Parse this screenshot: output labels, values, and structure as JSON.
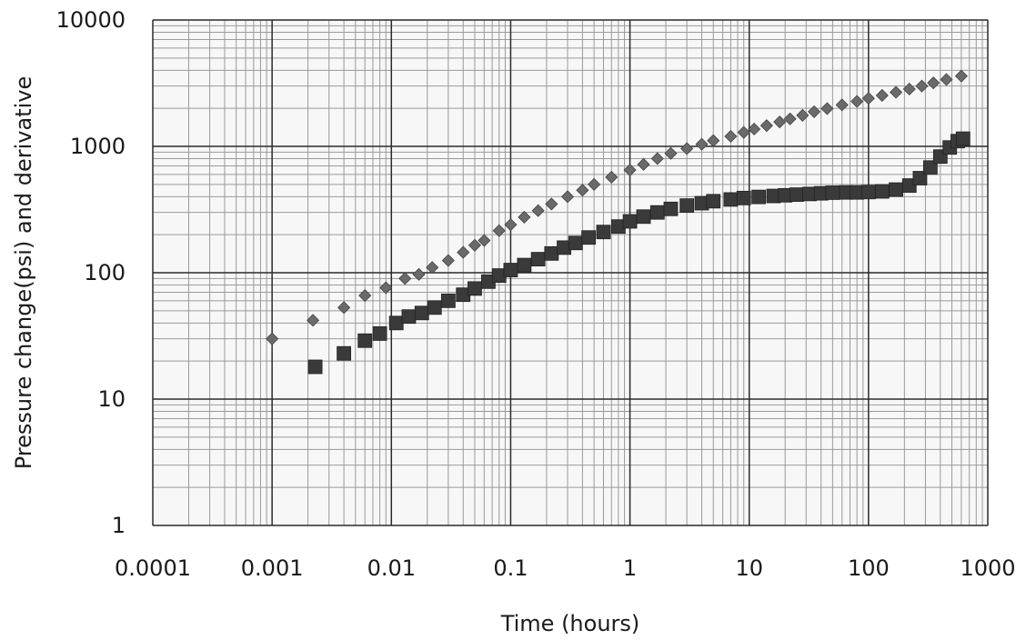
{
  "chart_data": {
    "type": "scatter",
    "title": "",
    "xlabel": "Time (hours)",
    "ylabel": "Pressure change(psi) and derivative",
    "x_scale": "log",
    "y_scale": "log",
    "xlim": [
      0.0001,
      1000
    ],
    "ylim": [
      1,
      10000
    ],
    "grid": true,
    "legend": "none",
    "x_ticks": [
      "0.0001",
      "0.001",
      "0.01",
      "0.1",
      "1",
      "10",
      "100",
      "1000"
    ],
    "y_ticks": [
      "1",
      "10",
      "100",
      "1000",
      "10000"
    ],
    "series": [
      {
        "marker": "diamond",
        "color": "#6a6a6a",
        "points": [
          [
            0.001,
            30
          ],
          [
            0.0022,
            42
          ],
          [
            0.004,
            53
          ],
          [
            0.006,
            66
          ],
          [
            0.009,
            76
          ],
          [
            0.013,
            90
          ],
          [
            0.017,
            97
          ],
          [
            0.022,
            110
          ],
          [
            0.03,
            125
          ],
          [
            0.04,
            145
          ],
          [
            0.05,
            165
          ],
          [
            0.06,
            180
          ],
          [
            0.08,
            215
          ],
          [
            0.1,
            240
          ],
          [
            0.13,
            275
          ],
          [
            0.17,
            310
          ],
          [
            0.22,
            350
          ],
          [
            0.3,
            400
          ],
          [
            0.4,
            450
          ],
          [
            0.5,
            500
          ],
          [
            0.7,
            570
          ],
          [
            1.0,
            650
          ],
          [
            1.3,
            720
          ],
          [
            1.7,
            800
          ],
          [
            2.2,
            880
          ],
          [
            3.0,
            960
          ],
          [
            4.0,
            1040
          ],
          [
            5.0,
            1110
          ],
          [
            7.0,
            1200
          ],
          [
            9.0,
            1290
          ],
          [
            11.0,
            1370
          ],
          [
            14.0,
            1460
          ],
          [
            18.0,
            1560
          ],
          [
            22.0,
            1650
          ],
          [
            28.0,
            1760
          ],
          [
            35.0,
            1880
          ],
          [
            45.0,
            1990
          ],
          [
            60.0,
            2130
          ],
          [
            80.0,
            2270
          ],
          [
            100.0,
            2400
          ],
          [
            130.0,
            2530
          ],
          [
            170.0,
            2680
          ],
          [
            220.0,
            2840
          ],
          [
            280.0,
            3000
          ],
          [
            350.0,
            3180
          ],
          [
            450.0,
            3380
          ],
          [
            600.0,
            3600
          ]
        ]
      },
      {
        "marker": "square",
        "color": "#3a3a3a",
        "points": [
          [
            0.0023,
            18
          ],
          [
            0.004,
            23
          ],
          [
            0.006,
            29
          ],
          [
            0.008,
            33
          ],
          [
            0.011,
            40
          ],
          [
            0.014,
            45
          ],
          [
            0.018,
            48
          ],
          [
            0.023,
            53
          ],
          [
            0.03,
            60
          ],
          [
            0.04,
            67
          ],
          [
            0.05,
            75
          ],
          [
            0.065,
            85
          ],
          [
            0.08,
            95
          ],
          [
            0.1,
            105
          ],
          [
            0.13,
            115
          ],
          [
            0.17,
            128
          ],
          [
            0.22,
            142
          ],
          [
            0.28,
            158
          ],
          [
            0.35,
            172
          ],
          [
            0.45,
            190
          ],
          [
            0.6,
            210
          ],
          [
            0.8,
            232
          ],
          [
            1.0,
            255
          ],
          [
            1.3,
            278
          ],
          [
            1.7,
            300
          ],
          [
            2.2,
            320
          ],
          [
            3.0,
            340
          ],
          [
            4.0,
            355
          ],
          [
            5.0,
            368
          ],
          [
            7.0,
            380
          ],
          [
            9.0,
            390
          ],
          [
            12.0,
            398
          ],
          [
            16.0,
            405
          ],
          [
            20.0,
            410
          ],
          [
            25.0,
            415
          ],
          [
            32.0,
            420
          ],
          [
            40.0,
            425
          ],
          [
            50.0,
            430
          ],
          [
            65.0,
            432
          ],
          [
            80.0,
            432
          ],
          [
            100.0,
            435
          ],
          [
            130.0,
            440
          ],
          [
            170.0,
            455
          ],
          [
            220.0,
            490
          ],
          [
            270.0,
            560
          ],
          [
            330.0,
            680
          ],
          [
            400.0,
            830
          ],
          [
            480.0,
            980
          ],
          [
            560.0,
            1100
          ],
          [
            620.0,
            1150
          ]
        ]
      }
    ]
  }
}
